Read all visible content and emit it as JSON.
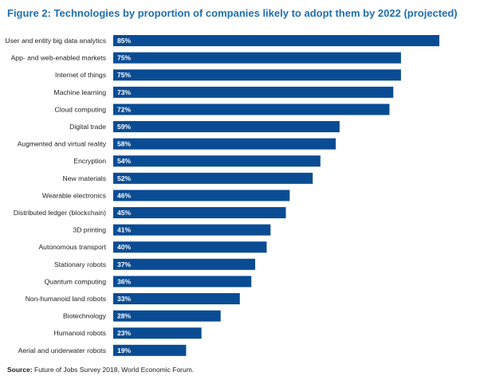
{
  "chart_data": {
    "type": "bar",
    "orientation": "horizontal",
    "title": "Figure 2: Technologies by proportion of companies likely to adopt them by 2022 (projected)",
    "categories": [
      "User and entity big data analytics",
      "App- and web-enabled markets",
      "Internet of things",
      "Machine learning",
      "Cloud computing",
      "Digital trade",
      "Augmented and virtual reality",
      "Encryption",
      "New materials",
      "Wearable electronics",
      "Distributed ledger (blockchain)",
      "3D printing",
      "Autonomous transport",
      "Stationary robots",
      "Quantum computing",
      "Non-humanoid land robots",
      "Biotechnology",
      "Humanoid robots",
      "Aerial and underwater robots"
    ],
    "values": [
      85,
      75,
      75,
      73,
      72,
      59,
      58,
      54,
      52,
      46,
      45,
      41,
      40,
      37,
      36,
      33,
      28,
      23,
      19
    ],
    "data_labels": [
      "85%",
      "75%",
      "75%",
      "73%",
      "72%",
      "59%",
      "58%",
      "54%",
      "52%",
      "46%",
      "45%",
      "41%",
      "40%",
      "37%",
      "36%",
      "33%",
      "28%",
      "23%",
      "19%"
    ],
    "xlim": [
      0,
      85
    ],
    "grid": false,
    "bar_color": "#0a4c94",
    "label_color": "#ffffff"
  },
  "source": {
    "label": "Source:",
    "text": " Future of Jobs Survey 2018, World Economic Forum."
  },
  "colors": {
    "title": "#1f6fb2",
    "text": "#222222"
  }
}
